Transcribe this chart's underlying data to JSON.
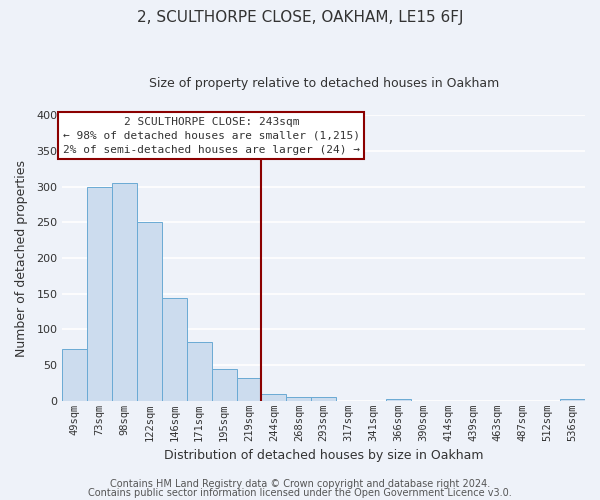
{
  "title": "2, SCULTHORPE CLOSE, OAKHAM, LE15 6FJ",
  "subtitle": "Size of property relative to detached houses in Oakham",
  "xlabel": "Distribution of detached houses by size in Oakham",
  "ylabel": "Number of detached properties",
  "bar_labels": [
    "49sqm",
    "73sqm",
    "98sqm",
    "122sqm",
    "146sqm",
    "171sqm",
    "195sqm",
    "219sqm",
    "244sqm",
    "268sqm",
    "293sqm",
    "317sqm",
    "341sqm",
    "366sqm",
    "390sqm",
    "414sqm",
    "439sqm",
    "463sqm",
    "487sqm",
    "512sqm",
    "536sqm"
  ],
  "bar_values": [
    73,
    299,
    305,
    250,
    144,
    82,
    44,
    32,
    10,
    6,
    5,
    0,
    0,
    3,
    0,
    0,
    0,
    0,
    0,
    0,
    3
  ],
  "bar_color": "#ccdcee",
  "bar_edge_color": "#6aaad4",
  "vline_color": "#8b0000",
  "vline_pos": 7.5,
  "annotation_text": "2 SCULTHORPE CLOSE: 243sqm\n← 98% of detached houses are smaller (1,215)\n2% of semi-detached houses are larger (24) →",
  "annotation_box_color": "#ffffff",
  "annotation_box_edge": "#8b0000",
  "ylim": [
    0,
    400
  ],
  "yticks": [
    0,
    50,
    100,
    150,
    200,
    250,
    300,
    350,
    400
  ],
  "footer1": "Contains HM Land Registry data © Crown copyright and database right 2024.",
  "footer2": "Contains public sector information licensed under the Open Government Licence v3.0.",
  "background_color": "#eef2f9",
  "grid_color": "#ffffff",
  "title_fontsize": 11,
  "subtitle_fontsize": 9,
  "xlabel_fontsize": 9,
  "ylabel_fontsize": 9,
  "tick_fontsize": 7.5,
  "footer_fontsize": 7
}
